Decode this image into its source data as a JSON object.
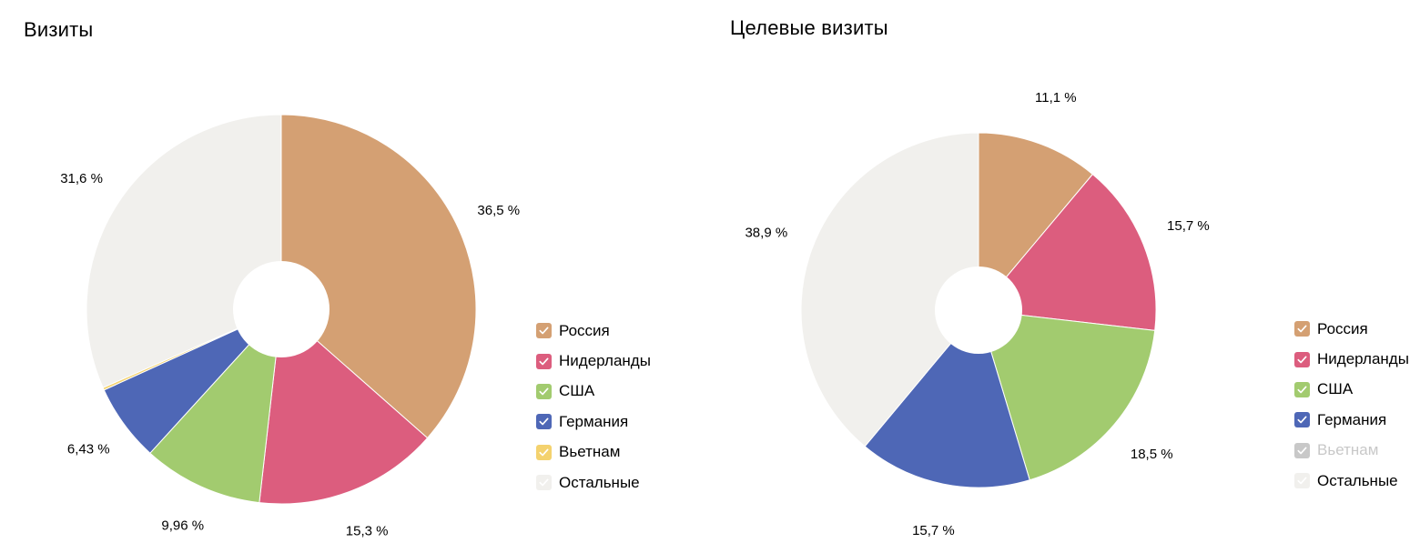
{
  "chart_data": [
    {
      "type": "pie",
      "title": "Визиты",
      "categories": [
        "Россия",
        "Нидерланды",
        "США",
        "Германия",
        "Вьетнам",
        "Остальные"
      ],
      "values": [
        36.5,
        15.3,
        9.96,
        6.43,
        0.21,
        31.6
      ],
      "labels": [
        "36,5 %",
        "15,3 %",
        "9,96 %",
        "6,43 %",
        "",
        "31,6 %"
      ],
      "colors": [
        "#d4a073",
        "#dc5d7e",
        "#a2cb6f",
        "#4e67b6",
        "#f4d26e",
        "#f1f0ed"
      ],
      "enabled": [
        true,
        true,
        true,
        true,
        true,
        true
      ],
      "donut": true
    },
    {
      "type": "pie",
      "title": "Целевые визиты",
      "categories": [
        "Россия",
        "Нидерланды",
        "США",
        "Германия",
        "Вьетнам",
        "Остальные"
      ],
      "values": [
        11.1,
        15.7,
        18.5,
        15.7,
        0,
        38.9
      ],
      "labels": [
        "11,1 %",
        "15,7 %",
        "18,5 %",
        "15,7 %",
        "",
        "38,9 %"
      ],
      "colors": [
        "#d4a073",
        "#dc5d7e",
        "#a2cb6f",
        "#4e67b6",
        "#c8c8c8",
        "#f1f0ed"
      ],
      "enabled": [
        true,
        true,
        true,
        true,
        false,
        true
      ],
      "donut": true
    }
  ]
}
